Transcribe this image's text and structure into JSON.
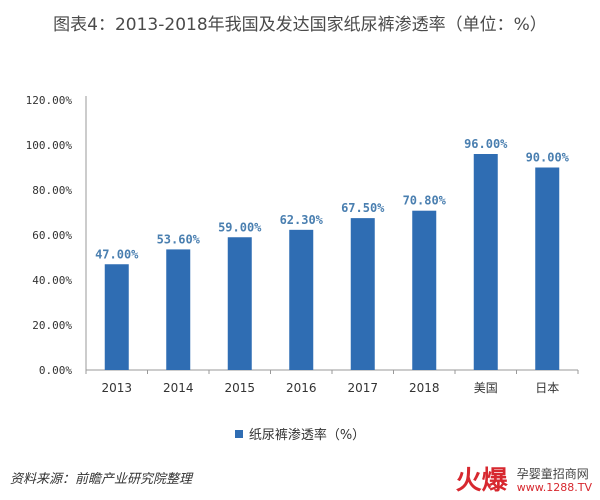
{
  "chart_data": {
    "type": "bar",
    "title": "图表4：2013-2018年我国及发达国家纸尿裤渗透率（单位：%）",
    "categories": [
      "2013",
      "2014",
      "2015",
      "2016",
      "2017",
      "2018",
      "美国",
      "日本"
    ],
    "series": [
      {
        "name": "纸尿裤渗透率（%）",
        "values": [
          47.0,
          53.6,
          59.0,
          62.3,
          67.5,
          70.8,
          96.0,
          90.0
        ]
      }
    ],
    "data_labels": [
      "47.00%",
      "53.60%",
      "59.00%",
      "62.30%",
      "67.50%",
      "70.80%",
      "96.00%",
      "90.00%"
    ],
    "yticks": [
      "0.00%",
      "20.00%",
      "40.00%",
      "60.00%",
      "80.00%",
      "100.00%",
      "120.00%"
    ],
    "ylim": [
      0,
      120
    ],
    "xlabel": "",
    "ylabel": "",
    "grid": false,
    "legend_position": "bottom",
    "bar_color": "#2f6db3",
    "label_color": "#4a7fb0"
  },
  "legend": {
    "label": "纸尿裤渗透率（%）"
  },
  "source": "资料来源：前瞻产业研究院整理",
  "watermark": {
    "brand": "火爆",
    "name": "孕婴童招商网",
    "url": "www.1288.TV"
  }
}
